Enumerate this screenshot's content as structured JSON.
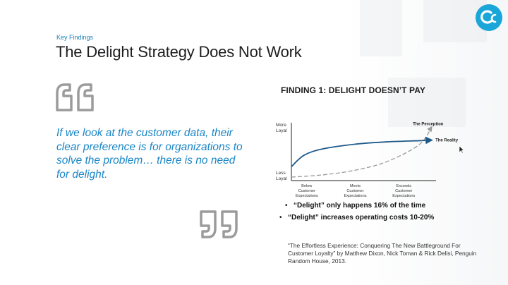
{
  "header": {
    "eyebrow": "Key Findings",
    "title": "The Delight Strategy Does Not Work"
  },
  "quote": {
    "text": "If we look at the customer data, their clear preference is for organizations to solve the problem… there is no need for delight."
  },
  "finding": {
    "title": "FINDING 1: DELIGHT DOESN’T PAY"
  },
  "chart_data": {
    "type": "line",
    "y_axis_labels": {
      "top": [
        "More",
        "Loyal"
      ],
      "bottom": [
        "Less",
        "Loyal"
      ]
    },
    "categories": [
      [
        "Below",
        "Customer",
        "Expectations"
      ],
      [
        "Meets",
        "Customer",
        "Expectations"
      ],
      [
        "Exceeds",
        "Customer",
        "Expectations"
      ]
    ],
    "series": [
      {
        "name": "The Perception",
        "style": "dashed",
        "color": "#9a9a9a",
        "x": [
          0,
          0.25,
          0.5,
          0.75,
          1.0,
          1.1
        ],
        "y": [
          0.06,
          0.1,
          0.18,
          0.33,
          0.62,
          0.93
        ]
      },
      {
        "name": "The Reality",
        "style": "solid",
        "color": "#1f5a8a",
        "x": [
          0,
          0.1,
          0.25,
          0.5,
          0.75,
          1.0,
          1.1
        ],
        "y": [
          0.24,
          0.44,
          0.55,
          0.63,
          0.67,
          0.69,
          0.7
        ]
      }
    ],
    "grid": false,
    "legend": "inline labels"
  },
  "bullets": [
    "“Delight” only happens 16% of the time",
    "“Delight” increases operating costs 10-20%"
  ],
  "citation": "“The Effortless Experience: Conquering The New Battleground For Customer Loyalty” by Matthew Dixon, Nick Toman & Rick Delisi, Penguin Random House, 2013.",
  "colors": {
    "accent": "#1a86c6",
    "quote_marks": "#9b9b9b",
    "reality_line": "#1f5a8a",
    "perception_line": "#9a9a9a"
  },
  "icons": [
    "logo-icon",
    "open-quote-icon",
    "close-quote-icon",
    "cursor-icon"
  ]
}
